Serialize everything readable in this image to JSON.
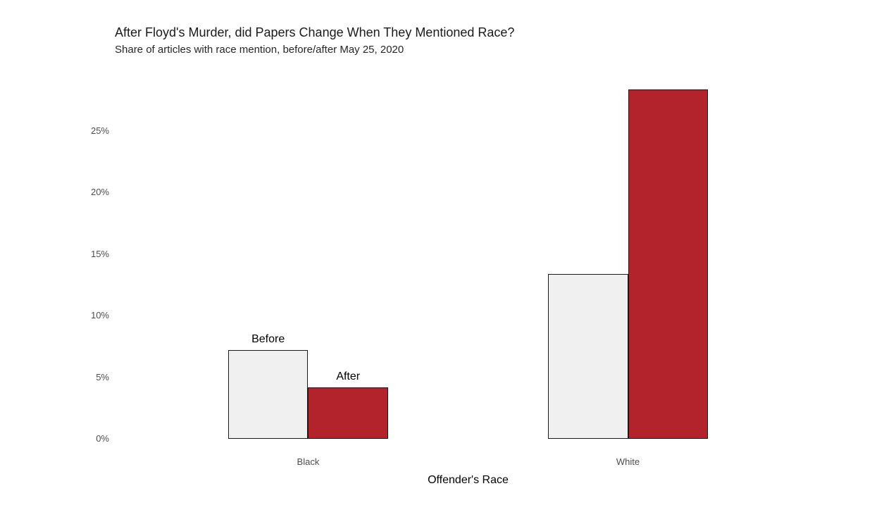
{
  "chart_data": {
    "type": "bar",
    "title": "After Floyd's Murder, did Papers Change When They Mentioned Race?",
    "subtitle": "Share of articles with race mention, before/after May 25, 2020",
    "xlabel": "Offender's Race",
    "ylabel": "",
    "categories": [
      "Black",
      "White"
    ],
    "series": [
      {
        "name": "Before",
        "color": "#F0F0F0",
        "values": [
          7.2,
          13.4
        ]
      },
      {
        "name": "After",
        "color": "#B2232B",
        "values": [
          4.2,
          28.4
        ]
      }
    ],
    "yticks": [
      "0%",
      "5%",
      "10%",
      "15%",
      "20%",
      "25%"
    ],
    "ytick_values": [
      0,
      5,
      10,
      15,
      20,
      25
    ],
    "ylim": [
      0,
      29.9
    ],
    "grid": false,
    "axis_lines": false,
    "legend_position": "direct-labels-above-first-group-bars",
    "bar_border_color": "#1A1A1A",
    "axis_text_color": "#4D4D4D",
    "background_color": "#FFFFFF"
  }
}
